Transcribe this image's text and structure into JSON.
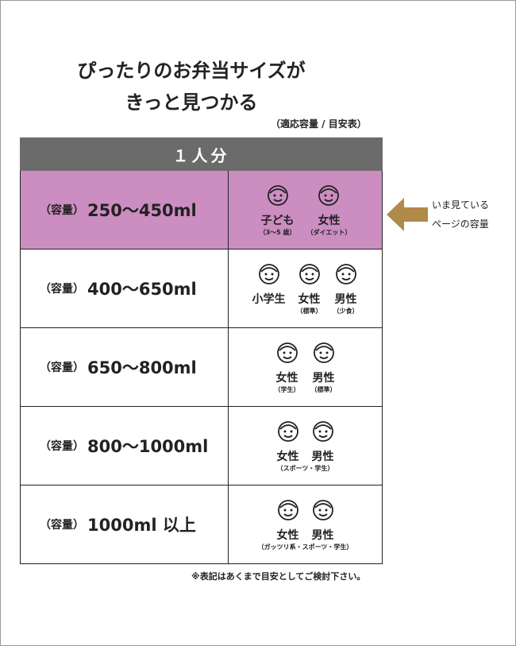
{
  "header": {
    "title_lines": [
      "ぴったりのお弁当サイズが",
      "きっと見つかる"
    ],
    "subtitle": "（適応容量 / 目安表）"
  },
  "table": {
    "heading": "１人分",
    "rows": [
      {
        "prefix": "（容量）",
        "capacity": "250〜450ml",
        "persons": [
          {
            "label": "子ども",
            "note": "（3〜5 歳）"
          },
          {
            "label": "女性",
            "note": "（ダイエット）"
          }
        ]
      },
      {
        "prefix": "（容量）",
        "capacity": "400〜650ml",
        "persons": [
          {
            "label": "小学生"
          },
          {
            "label": "女性",
            "note": "（標準）"
          },
          {
            "label": "男性",
            "note": "（少食）"
          }
        ]
      },
      {
        "prefix": "（容量）",
        "capacity": "650〜800ml",
        "persons": [
          {
            "label": "女性",
            "note": "（学生）"
          },
          {
            "label": "男性",
            "note": "（標準）"
          }
        ]
      },
      {
        "prefix": "（容量）",
        "capacity": "800〜1000ml",
        "persons": [
          {
            "label": "女性"
          },
          {
            "label": "男性"
          }
        ],
        "note": "（スポーツ・学生）"
      },
      {
        "prefix": "（容量）",
        "capacity": "1000ml 以上",
        "persons": [
          {
            "label": "女性"
          },
          {
            "label": "男性"
          }
        ],
        "note": "（ガッツリ系・スポーツ・学生）"
      }
    ]
  },
  "callout": {
    "lines": [
      "いま見ている",
      "ページの容量"
    ]
  },
  "footnote": "※表記はあくまで目安としてご検討下さい。"
}
